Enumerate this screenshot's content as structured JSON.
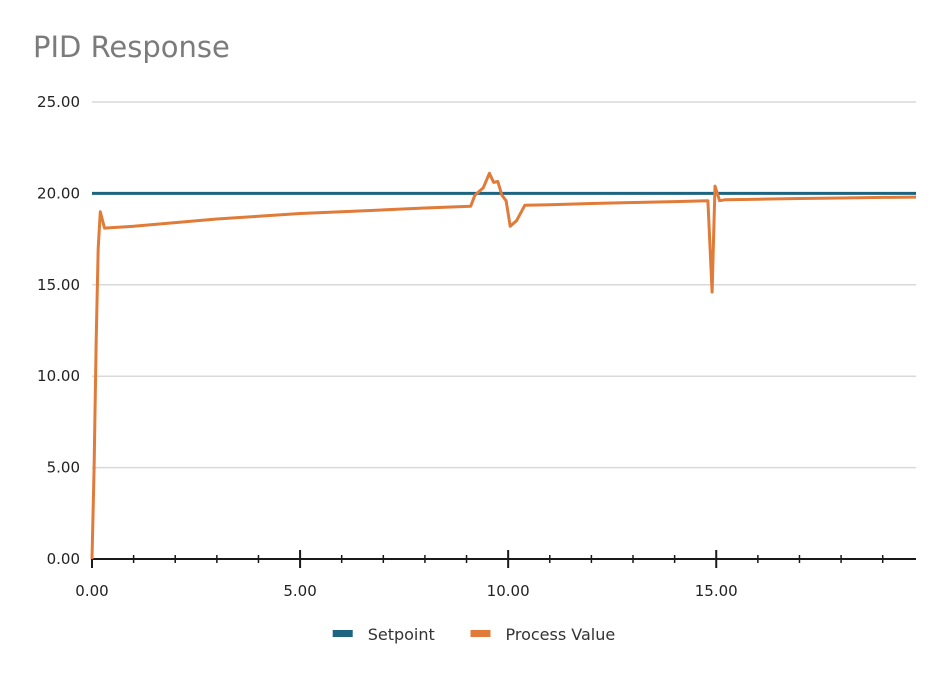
{
  "chart_data": {
    "type": "line",
    "title": "PID Response",
    "xlabel": "",
    "ylabel": "",
    "xlim": [
      0,
      19.8
    ],
    "ylim": [
      0,
      25
    ],
    "x_ticks": [
      "0.00",
      "5.00",
      "10.00",
      "15.00"
    ],
    "x_tick_values": [
      0,
      5,
      10,
      15
    ],
    "x_minor_step": 1,
    "y_ticks": [
      "0.00",
      "5.00",
      "10.00",
      "15.00",
      "20.00",
      "25.00"
    ],
    "y_tick_values": [
      0,
      5,
      10,
      15,
      20,
      25
    ],
    "grid": "horizontal",
    "legend_position": "bottom-center",
    "series": [
      {
        "name": "Setpoint",
        "color": "#1d6480",
        "points": [
          [
            0,
            20
          ],
          [
            19.8,
            20
          ]
        ]
      },
      {
        "name": "Process Value",
        "color": "#e07b39",
        "points": [
          [
            0,
            0
          ],
          [
            0.05,
            5
          ],
          [
            0.1,
            12
          ],
          [
            0.15,
            17
          ],
          [
            0.2,
            19
          ],
          [
            0.3,
            18.1
          ],
          [
            1,
            18.2
          ],
          [
            2,
            18.4
          ],
          [
            3,
            18.6
          ],
          [
            4,
            18.75
          ],
          [
            5,
            18.9
          ],
          [
            6,
            19.0
          ],
          [
            7,
            19.1
          ],
          [
            8,
            19.2
          ],
          [
            9.1,
            19.3
          ],
          [
            9.2,
            19.9
          ],
          [
            9.4,
            20.3
          ],
          [
            9.55,
            21.1
          ],
          [
            9.65,
            20.6
          ],
          [
            9.75,
            20.65
          ],
          [
            9.85,
            19.9
          ],
          [
            9.95,
            19.6
          ],
          [
            10.05,
            18.2
          ],
          [
            10.2,
            18.5
          ],
          [
            10.4,
            19.35
          ],
          [
            11,
            19.38
          ],
          [
            12,
            19.45
          ],
          [
            13,
            19.5
          ],
          [
            14,
            19.55
          ],
          [
            14.8,
            19.6
          ],
          [
            14.9,
            14.6
          ],
          [
            14.97,
            20.4
          ],
          [
            15.08,
            19.6
          ],
          [
            15.2,
            19.65
          ],
          [
            16,
            19.68
          ],
          [
            17,
            19.72
          ],
          [
            18,
            19.75
          ],
          [
            19,
            19.78
          ],
          [
            19.8,
            19.8
          ]
        ]
      }
    ]
  }
}
